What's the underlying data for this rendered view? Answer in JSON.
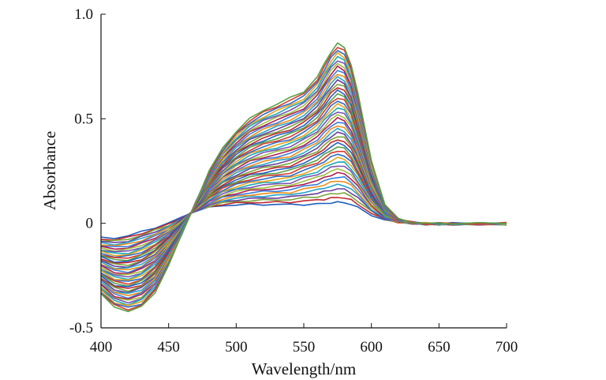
{
  "chart_data": {
    "type": "line",
    "title": "",
    "xlabel": "Wavelength/nm",
    "ylabel": "Absorbance",
    "xlim": [
      400,
      700
    ],
    "ylim": [
      -0.5,
      1.0
    ],
    "x_ticks": [
      400,
      450,
      500,
      550,
      600,
      650,
      700
    ],
    "y_ticks": [
      1.0,
      0.5,
      0,
      -0.5
    ],
    "x_tick_labels": [
      "400",
      "450",
      "500",
      "550",
      "600",
      "650",
      "700"
    ],
    "y_tick_labels": [
      "1.0",
      "0.5",
      "0",
      "-0.5"
    ],
    "grid": false,
    "legend": "none",
    "isosbestic_point": {
      "x": 468,
      "y": 0.07
    },
    "family": {
      "count": 45,
      "x": [
        400,
        410,
        420,
        430,
        440,
        450,
        460,
        470,
        480,
        490,
        500,
        510,
        520,
        530,
        540,
        550,
        560,
        565,
        570,
        575,
        580,
        585,
        590,
        600,
        610,
        620,
        630,
        640,
        650,
        660,
        680,
        700
      ],
      "first_series": [
        -0.07,
        -0.07,
        -0.06,
        -0.04,
        -0.02,
        0.0,
        0.03,
        0.06,
        0.075,
        0.085,
        0.088,
        0.09,
        0.09,
        0.09,
        0.09,
        0.09,
        0.092,
        0.095,
        0.098,
        0.1,
        0.1,
        0.09,
        0.075,
        0.04,
        0.015,
        0.005,
        0.0,
        -0.005,
        -0.005,
        -0.005,
        -0.005,
        -0.005
      ],
      "last_series": [
        -0.34,
        -0.4,
        -0.42,
        -0.4,
        -0.33,
        -0.2,
        -0.05,
        0.1,
        0.25,
        0.36,
        0.44,
        0.5,
        0.54,
        0.57,
        0.6,
        0.63,
        0.7,
        0.76,
        0.82,
        0.86,
        0.84,
        0.76,
        0.62,
        0.3,
        0.09,
        0.02,
        0.005,
        0.0,
        0.0,
        0.0,
        0.0,
        0.0
      ]
    },
    "series_colors": [
      "#1f5fbf",
      "#c1272d",
      "#7aa33a",
      "#6a3d9a",
      "#23a3c9",
      "#f08c1a",
      "#3a7fd9",
      "#b01c52",
      "#9cc03a",
      "#7b52b3",
      "#1aa8b8",
      "#e8a21c",
      "#2f6cc4",
      "#d63a2f",
      "#58a045"
    ]
  }
}
